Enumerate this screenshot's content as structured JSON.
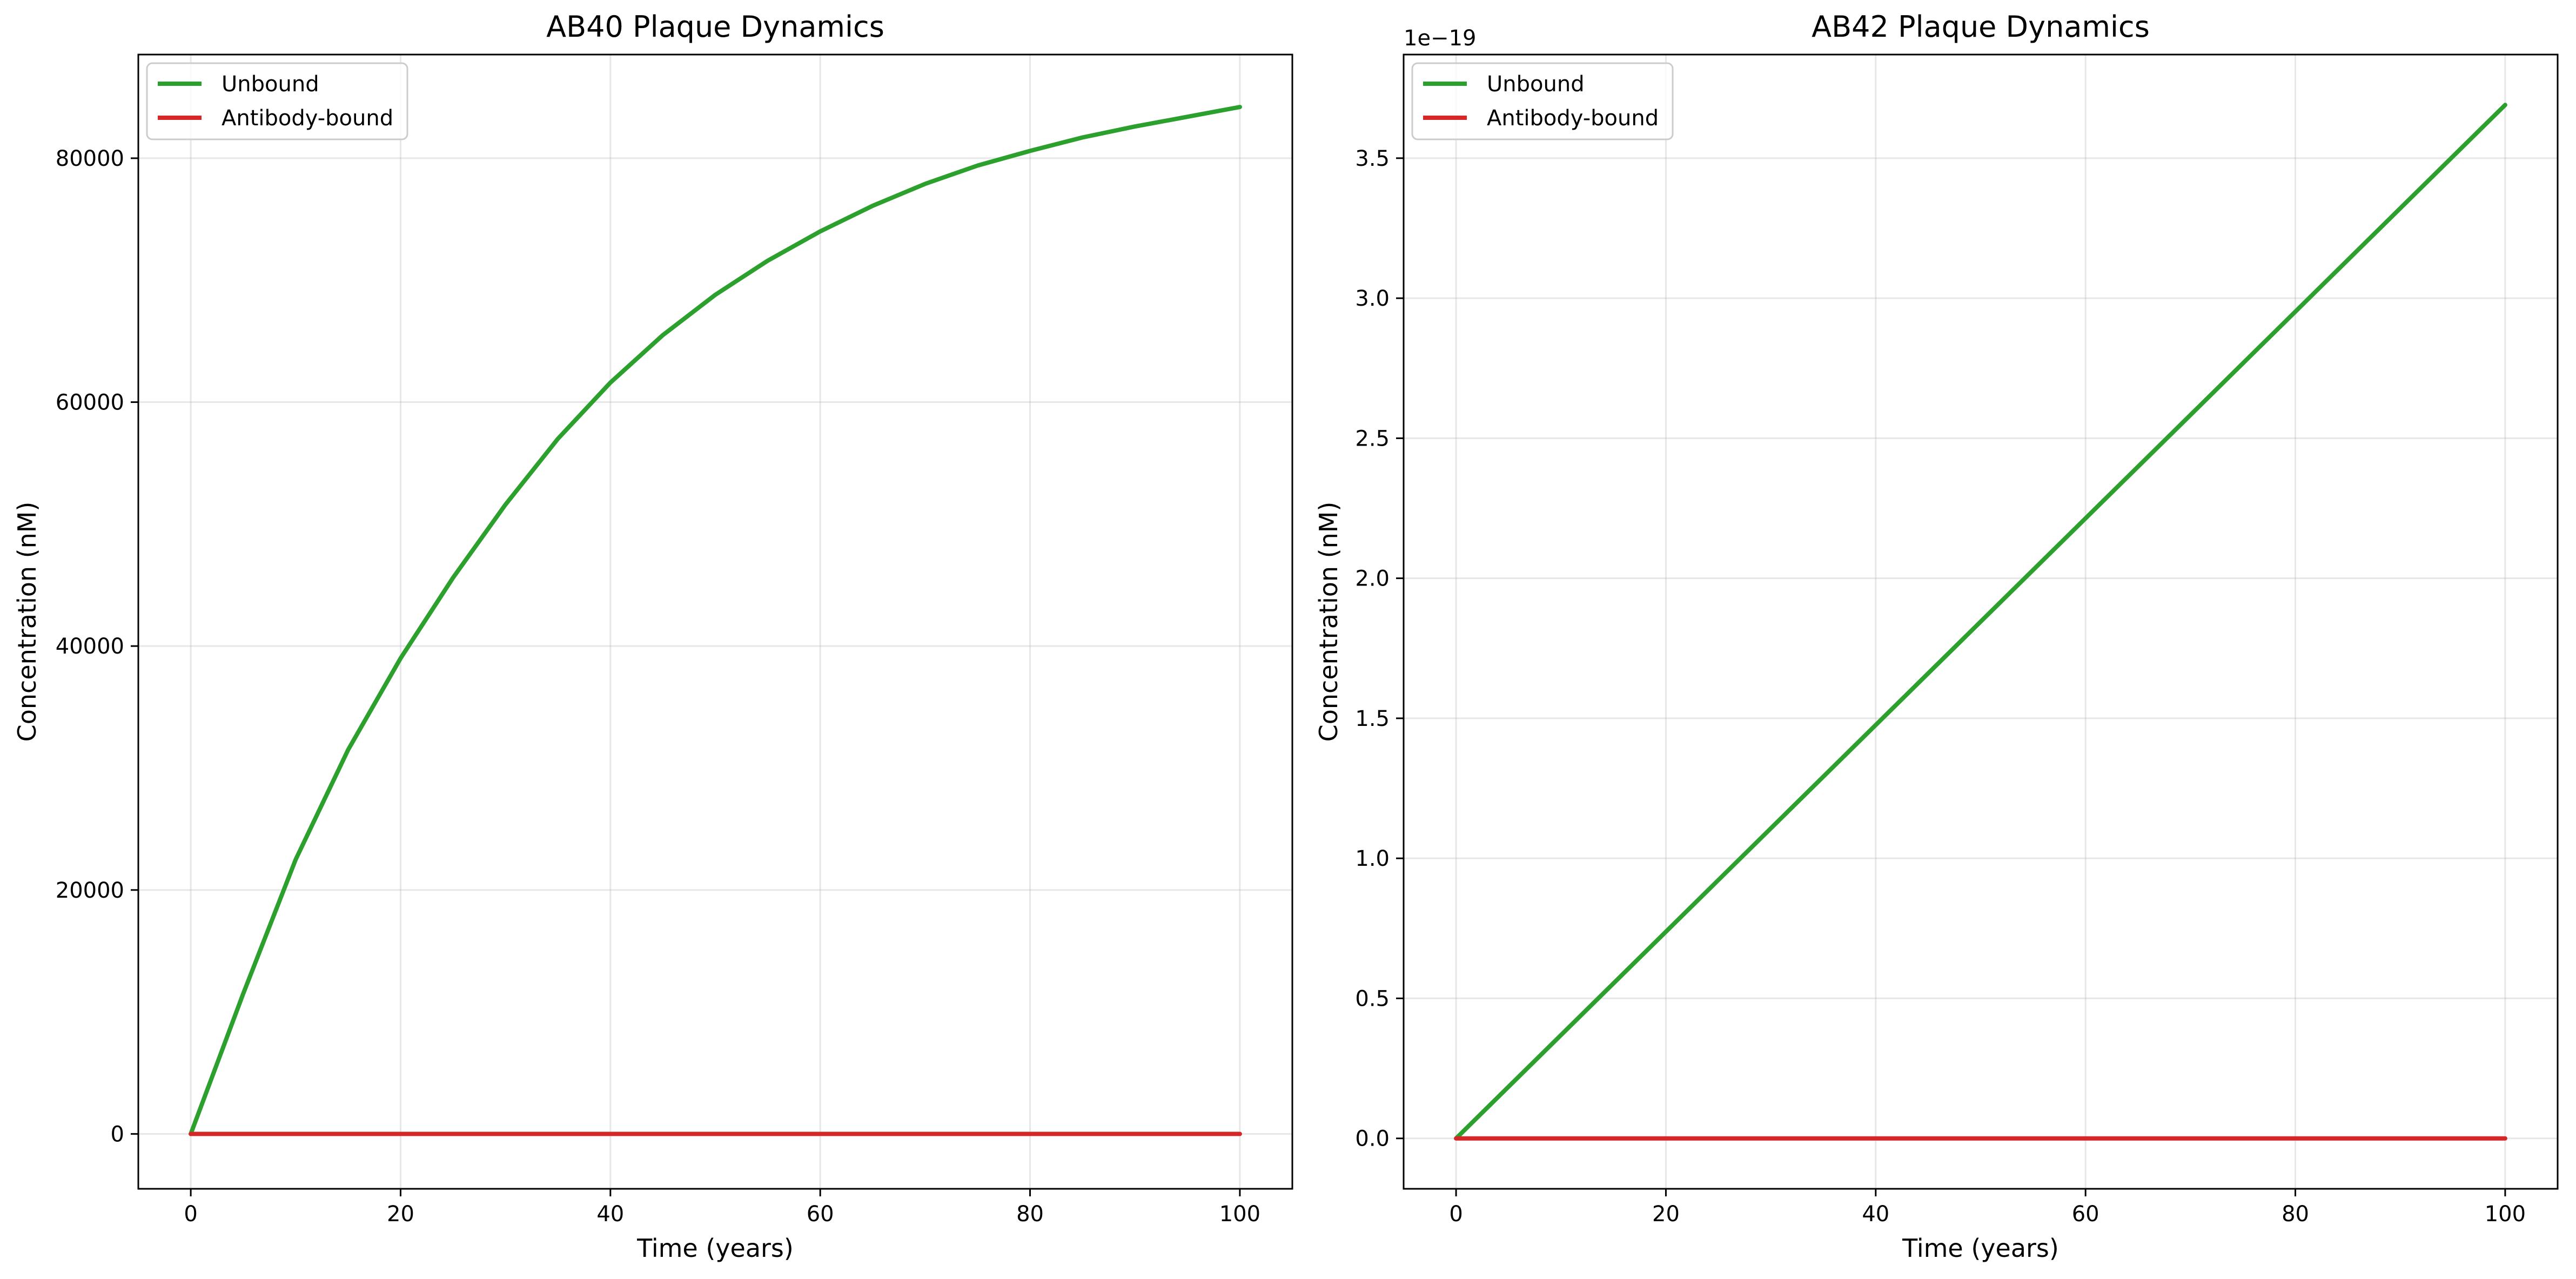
{
  "chart_data": [
    {
      "type": "line",
      "title": "AB40 Plaque Dynamics",
      "xlabel": "Time (years)",
      "ylabel": "Concentration (nM)",
      "xlim": [
        -5,
        105
      ],
      "ylim": [
        -4500,
        88500
      ],
      "xticks": [
        0,
        20,
        40,
        60,
        80,
        100
      ],
      "xtick_labels": [
        "0",
        "20",
        "40",
        "60",
        "80",
        "100"
      ],
      "yticks": [
        0,
        20000,
        40000,
        60000,
        80000
      ],
      "ytick_labels": [
        "0",
        "20000",
        "40000",
        "60000",
        "80000"
      ],
      "offset_text": "",
      "grid": true,
      "legend_position": "upper-left",
      "series": [
        {
          "name": "Unbound",
          "color": "#2ca02c",
          "x": [
            0,
            5,
            10,
            15,
            20,
            25,
            30,
            35,
            40,
            45,
            50,
            55,
            60,
            65,
            70,
            75,
            80,
            85,
            90,
            95,
            100
          ],
          "y": [
            0,
            11500,
            22500,
            31500,
            39000,
            45600,
            51600,
            57000,
            61600,
            65500,
            68800,
            71600,
            74000,
            76100,
            77900,
            79400,
            80600,
            81700,
            82600,
            83400,
            84200
          ]
        },
        {
          "name": "Antibody-bound",
          "color": "#d62728",
          "x": [
            0,
            100
          ],
          "y": [
            0,
            0
          ]
        }
      ]
    },
    {
      "type": "line",
      "title": "AB42 Plaque Dynamics",
      "xlabel": "Time (years)",
      "ylabel": "Concentration (nM)",
      "xlim": [
        -5,
        105
      ],
      "ylim": [
        -0.18,
        3.87
      ],
      "xticks": [
        0,
        20,
        40,
        60,
        80,
        100
      ],
      "xtick_labels": [
        "0",
        "20",
        "40",
        "60",
        "80",
        "100"
      ],
      "yticks": [
        0.0,
        0.5,
        1.0,
        1.5,
        2.0,
        2.5,
        3.0,
        3.5
      ],
      "ytick_labels": [
        "0.0",
        "0.5",
        "1.0",
        "1.5",
        "2.0",
        "2.5",
        "3.0",
        "3.5"
      ],
      "offset_text": "1e−19",
      "grid": true,
      "legend_position": "upper-left",
      "series": [
        {
          "name": "Unbound",
          "color": "#2ca02c",
          "x": [
            0,
            100
          ],
          "y": [
            0,
            3.69
          ]
        },
        {
          "name": "Antibody-bound",
          "color": "#d62728",
          "x": [
            0,
            100
          ],
          "y": [
            0,
            0
          ]
        }
      ]
    }
  ]
}
